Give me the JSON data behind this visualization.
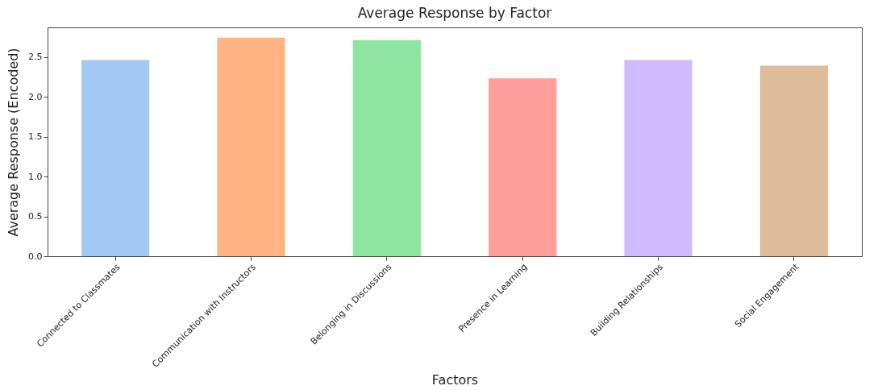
{
  "chart_data": {
    "type": "bar",
    "title": "Average Response by Factor",
    "xlabel": "Factors",
    "ylabel": "Average Response (Encoded)",
    "categories": [
      "Connected to Classmates",
      "Communication with Instructors",
      "Belonging in Discussions",
      "Presence in Learning",
      "Building Relationships",
      "Social Engagement"
    ],
    "values": [
      2.46,
      2.74,
      2.71,
      2.23,
      2.46,
      2.39
    ],
    "colors": [
      "#a1c9f4",
      "#ffb482",
      "#8de5a1",
      "#ff9f9b",
      "#d0bbff",
      "#debb9b"
    ],
    "ylim": [
      0,
      2.87
    ],
    "yticks": [
      {
        "value": 0,
        "label": "0.0"
      },
      {
        "value": 0.5,
        "label": "0.5"
      },
      {
        "value": 1,
        "label": "1.0"
      },
      {
        "value": 1.5,
        "label": "1.5"
      },
      {
        "value": 2,
        "label": "2.0"
      },
      {
        "value": 2.5,
        "label": "2.5"
      }
    ],
    "grid": false
  }
}
